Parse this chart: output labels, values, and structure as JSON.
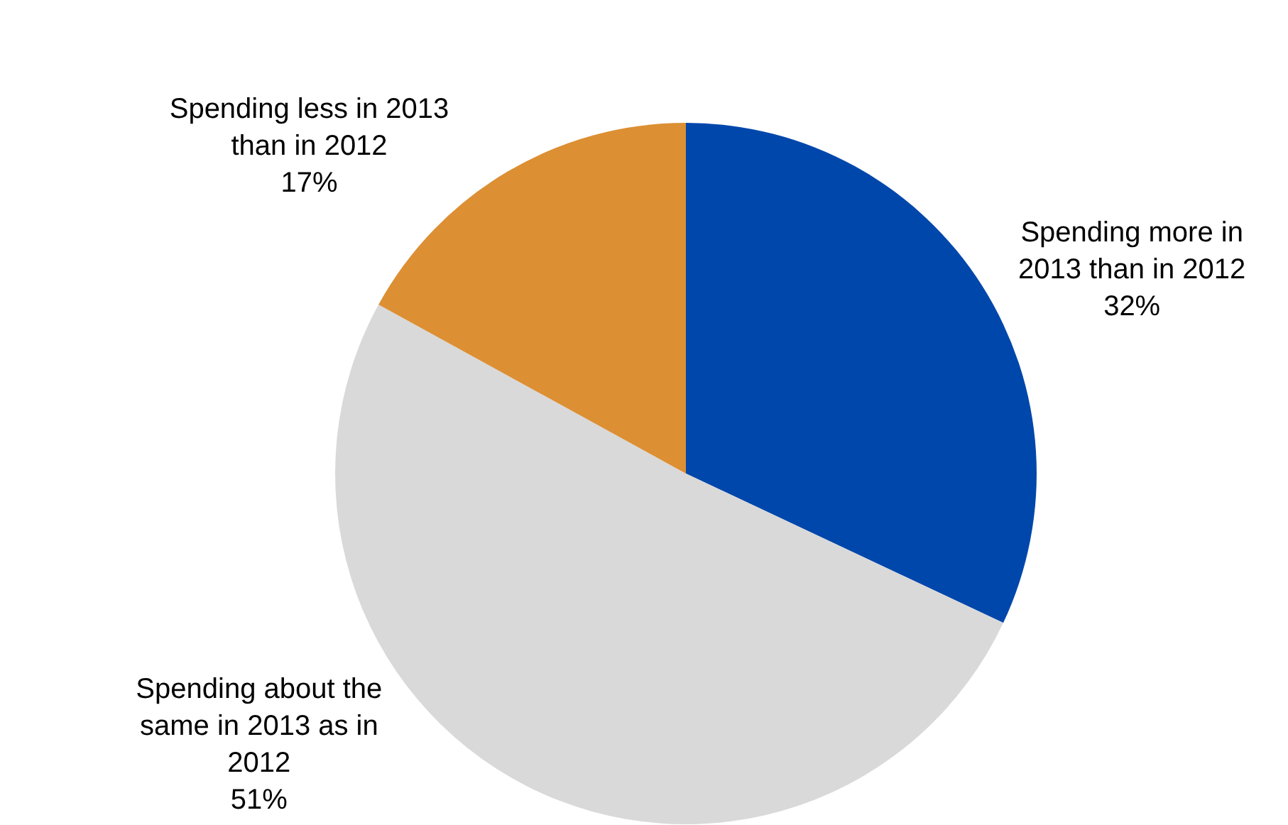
{
  "chart_data": {
    "type": "pie",
    "categories": [
      "Spending more in 2013 than in 2012",
      "Spending about the same in 2013 as in 2012",
      "Spending less in 2013 than in 2012"
    ],
    "values": [
      32,
      51,
      17
    ],
    "value_labels": [
      "32%",
      "51%",
      "17%"
    ],
    "colors": [
      "#0047ab",
      "#d9d9d9",
      "#dc8f33"
    ],
    "legend": false
  }
}
